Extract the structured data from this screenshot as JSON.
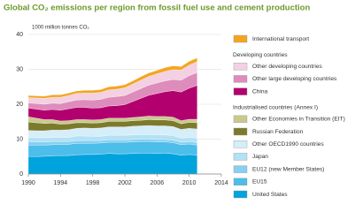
{
  "chart_data": {
    "type": "stacked-area",
    "title": "Global CO₂ emissions per region from fossil fuel use and cement production",
    "y_label": "1000 million tonnes CO₂",
    "x": [
      1990,
      1991,
      1992,
      1993,
      1994,
      1995,
      1996,
      1997,
      1998,
      1999,
      2000,
      2001,
      2002,
      2003,
      2004,
      2005,
      2006,
      2007,
      2008,
      2009,
      2010,
      2011
    ],
    "xlim": [
      1990,
      2014
    ],
    "xticks": [
      1990,
      1994,
      1998,
      2002,
      2006,
      2010,
      2014
    ],
    "ylim": [
      0,
      40
    ],
    "yticks": [
      0,
      10,
      20,
      30,
      40
    ],
    "grid": true,
    "series": [
      {
        "name": "United States",
        "group": "Industrialised countries (Annex I)",
        "color": "#00a3dc",
        "values": [
          5.0,
          5.0,
          5.1,
          5.2,
          5.3,
          5.3,
          5.5,
          5.6,
          5.6,
          5.7,
          5.9,
          5.8,
          5.8,
          5.9,
          6.0,
          6.0,
          5.9,
          6.0,
          5.8,
          5.4,
          5.6,
          5.4
        ]
      },
      {
        "name": "EU15",
        "group": "Industrialised countries (Annex I)",
        "color": "#4dbdea",
        "values": [
          3.3,
          3.3,
          3.2,
          3.2,
          3.2,
          3.2,
          3.3,
          3.2,
          3.2,
          3.2,
          3.2,
          3.3,
          3.3,
          3.3,
          3.3,
          3.3,
          3.3,
          3.2,
          3.2,
          3.0,
          3.0,
          2.9
        ]
      },
      {
        "name": "EU12 (new Member States)",
        "group": "Industrialised countries (Annex I)",
        "color": "#86d0f0",
        "values": [
          1.0,
          0.9,
          0.9,
          0.9,
          0.8,
          0.8,
          0.8,
          0.8,
          0.8,
          0.7,
          0.7,
          0.7,
          0.7,
          0.7,
          0.7,
          0.7,
          0.7,
          0.7,
          0.7,
          0.7,
          0.7,
          0.7
        ]
      },
      {
        "name": "Japan",
        "group": "Industrialised countries (Annex I)",
        "color": "#b3e1f5",
        "values": [
          1.2,
          1.2,
          1.2,
          1.2,
          1.2,
          1.2,
          1.3,
          1.3,
          1.2,
          1.2,
          1.3,
          1.3,
          1.3,
          1.3,
          1.3,
          1.3,
          1.3,
          1.3,
          1.3,
          1.2,
          1.2,
          1.3
        ]
      },
      {
        "name": "Other OECD1990 countries",
        "group": "Industrialised countries (Annex I)",
        "color": "#d6eef9",
        "values": [
          2.0,
          2.0,
          2.0,
          2.1,
          2.1,
          2.2,
          2.2,
          2.3,
          2.3,
          2.4,
          2.4,
          2.4,
          2.4,
          2.5,
          2.5,
          2.6,
          2.6,
          2.6,
          2.6,
          2.5,
          2.6,
          2.6
        ]
      },
      {
        "name": "Russian Federation",
        "group": "Industrialised countries (Annex I)",
        "color": "#7c7a2c",
        "values": [
          2.4,
          2.3,
          2.1,
          2.0,
          1.7,
          1.7,
          1.6,
          1.5,
          1.5,
          1.5,
          1.6,
          1.6,
          1.6,
          1.6,
          1.6,
          1.7,
          1.7,
          1.7,
          1.7,
          1.6,
          1.7,
          1.8
        ]
      },
      {
        "name": "Other Economies in Transition (EIT)",
        "group": "Industrialised countries (Annex I)",
        "color": "#c9c98e",
        "values": [
          1.5,
          1.3,
          1.1,
          1.0,
          0.9,
          0.9,
          0.9,
          0.9,
          0.9,
          0.9,
          0.9,
          0.9,
          0.9,
          0.9,
          1.0,
          1.0,
          1.0,
          1.0,
          1.0,
          0.9,
          0.9,
          1.0
        ]
      },
      {
        "name": "China",
        "group": "Developing countries",
        "color": "#b2006f",
        "values": [
          2.5,
          2.6,
          2.7,
          2.9,
          3.1,
          3.4,
          3.5,
          3.5,
          3.4,
          3.4,
          3.5,
          3.6,
          3.9,
          4.6,
          5.3,
          6.0,
          6.6,
          7.1,
          7.6,
          8.2,
          8.9,
          9.7
        ]
      },
      {
        "name": "Other large developing countries",
        "group": "Developing countries",
        "color": "#de8cbb",
        "values": [
          1.5,
          1.6,
          1.7,
          1.8,
          1.9,
          2.0,
          2.1,
          2.2,
          2.3,
          2.4,
          2.5,
          2.6,
          2.6,
          2.7,
          2.8,
          2.9,
          3.0,
          3.1,
          3.2,
          3.4,
          3.6,
          3.7
        ]
      },
      {
        "name": "Other developing countries",
        "group": "Developing countries",
        "color": "#f3d0e2",
        "values": [
          1.5,
          1.6,
          1.7,
          1.7,
          1.8,
          1.8,
          1.9,
          1.9,
          2.0,
          2.0,
          2.1,
          2.1,
          2.2,
          2.3,
          2.4,
          2.5,
          2.6,
          2.7,
          2.8,
          2.9,
          3.0,
          3.1
        ]
      },
      {
        "name": "International transport",
        "color": "#f4a520",
        "values": [
          0.6,
          0.6,
          0.6,
          0.7,
          0.7,
          0.7,
          0.7,
          0.8,
          0.8,
          0.8,
          0.9,
          0.9,
          0.9,
          0.9,
          1.0,
          1.0,
          1.0,
          1.1,
          1.1,
          1.0,
          1.1,
          1.1
        ]
      }
    ]
  }
}
